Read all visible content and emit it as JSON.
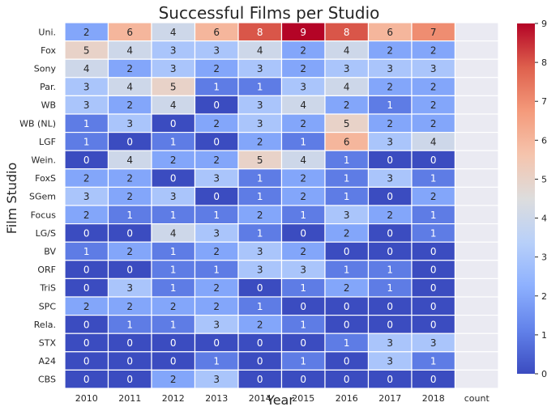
{
  "chart_data": {
    "type": "heatmap",
    "title": "Successful Films per Studio",
    "xlabel": "Year",
    "ylabel": "Film Studio",
    "x_categories": [
      "2010",
      "2011",
      "2012",
      "2013",
      "2014",
      "2015",
      "2016",
      "2017",
      "2018",
      "count"
    ],
    "y_categories": [
      "Uni.",
      "Fox",
      "Sony",
      "Par.",
      "WB",
      "WB (NL)",
      "LGF",
      "Wein.",
      "FoxS",
      "SGem",
      "Focus",
      "LG/S",
      "BV",
      "ORF",
      "TriS",
      "SPC",
      "Rela.",
      "STX",
      "A24",
      "CBS"
    ],
    "values": [
      [
        2,
        6,
        4,
        6,
        8,
        9,
        8,
        6,
        7,
        null
      ],
      [
        5,
        4,
        3,
        3,
        4,
        2,
        4,
        2,
        2,
        null
      ],
      [
        4,
        2,
        3,
        2,
        3,
        2,
        3,
        3,
        3,
        null
      ],
      [
        3,
        4,
        5,
        1,
        1,
        3,
        4,
        2,
        2,
        null
      ],
      [
        3,
        2,
        4,
        0,
        3,
        4,
        2,
        1,
        2,
        null
      ],
      [
        1,
        3,
        0,
        2,
        3,
        2,
        5,
        2,
        2,
        null
      ],
      [
        1,
        0,
        1,
        0,
        2,
        1,
        6,
        3,
        4,
        null
      ],
      [
        0,
        4,
        2,
        2,
        5,
        4,
        1,
        0,
        0,
        null
      ],
      [
        2,
        2,
        0,
        3,
        1,
        2,
        1,
        3,
        1,
        null
      ],
      [
        3,
        2,
        3,
        0,
        1,
        2,
        1,
        0,
        2,
        null
      ],
      [
        2,
        1,
        1,
        1,
        2,
        1,
        3,
        2,
        1,
        null
      ],
      [
        0,
        0,
        4,
        3,
        1,
        0,
        2,
        0,
        1,
        null
      ],
      [
        1,
        2,
        1,
        2,
        3,
        2,
        0,
        0,
        0,
        null
      ],
      [
        0,
        0,
        1,
        1,
        3,
        3,
        1,
        1,
        0,
        null
      ],
      [
        0,
        3,
        1,
        2,
        0,
        1,
        2,
        1,
        0,
        null
      ],
      [
        2,
        2,
        2,
        2,
        1,
        0,
        0,
        0,
        0,
        null
      ],
      [
        0,
        1,
        1,
        3,
        2,
        1,
        0,
        0,
        0,
        null
      ],
      [
        0,
        0,
        0,
        0,
        0,
        0,
        1,
        3,
        3,
        null
      ],
      [
        0,
        0,
        0,
        1,
        0,
        1,
        0,
        3,
        1,
        null
      ],
      [
        0,
        0,
        2,
        3,
        0,
        0,
        0,
        0,
        0,
        null
      ]
    ],
    "colorbar": {
      "colormap": "coolwarm",
      "range": [
        0,
        9
      ],
      "ticks": [
        "0",
        "1",
        "2",
        "3",
        "4",
        "5",
        "6",
        "7",
        "8",
        "9"
      ]
    },
    "missing_color": "#eaeaf2",
    "grid": true
  }
}
